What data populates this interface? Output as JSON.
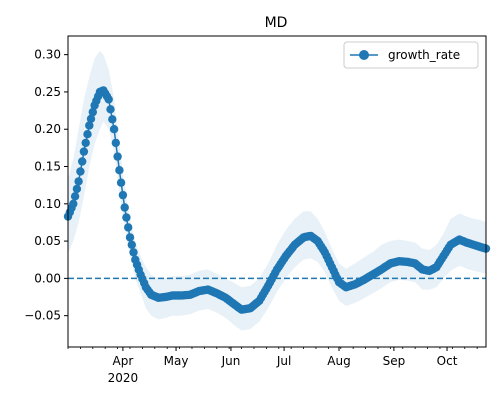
{
  "chart_data": {
    "type": "line",
    "title": "MD",
    "xlabel": "",
    "ylabel": "",
    "ylim": [
      -0.092,
      0.325
    ],
    "x_ticks": [
      {
        "date": "2020-04-01",
        "label": "Apr",
        "sublabel": "2020"
      },
      {
        "date": "2020-05-01",
        "label": "May"
      },
      {
        "date": "2020-06-01",
        "label": "Jun"
      },
      {
        "date": "2020-07-01",
        "label": "Jul"
      },
      {
        "date": "2020-08-01",
        "label": "Aug"
      },
      {
        "date": "2020-09-01",
        "label": "Sep"
      },
      {
        "date": "2020-10-01",
        "label": "Oct"
      }
    ],
    "y_ticks": [
      {
        "value": 0.3,
        "label": "0.30"
      },
      {
        "value": 0.25,
        "label": "0.25"
      },
      {
        "value": 0.2,
        "label": "0.20"
      },
      {
        "value": 0.15,
        "label": "0.15"
      },
      {
        "value": 0.1,
        "label": "0.10"
      },
      {
        "value": 0.05,
        "label": "0.05"
      },
      {
        "value": 0.0,
        "label": "0.00"
      },
      {
        "value": -0.05,
        "label": "−0.05"
      }
    ],
    "x_range": [
      "2020-03-01",
      "2020-10-23"
    ],
    "reference_line": {
      "y": 0.0,
      "style": "dashed",
      "color": "#1f77b4"
    },
    "legend": {
      "location": "upper right",
      "entries": [
        "growth_rate"
      ]
    },
    "series": [
      {
        "name": "growth_rate",
        "color": "#1f77b4",
        "band_color": "#1f77b4",
        "band_opacity": 0.1,
        "points": [
          {
            "x": "2020-03-01",
            "y": 0.083,
            "lo": 0.033,
            "hi": 0.133
          },
          {
            "x": "2020-03-04",
            "y": 0.1,
            "lo": 0.05,
            "hi": 0.16
          },
          {
            "x": "2020-03-07",
            "y": 0.13,
            "lo": 0.075,
            "hi": 0.2
          },
          {
            "x": "2020-03-10",
            "y": 0.17,
            "lo": 0.11,
            "hi": 0.24
          },
          {
            "x": "2020-03-13",
            "y": 0.205,
            "lo": 0.15,
            "hi": 0.27
          },
          {
            "x": "2020-03-16",
            "y": 0.232,
            "lo": 0.18,
            "hi": 0.295
          },
          {
            "x": "2020-03-19",
            "y": 0.25,
            "lo": 0.2,
            "hi": 0.305
          },
          {
            "x": "2020-03-21",
            "y": 0.252,
            "lo": 0.21,
            "hi": 0.3
          },
          {
            "x": "2020-03-24",
            "y": 0.24,
            "lo": 0.2,
            "hi": 0.28
          },
          {
            "x": "2020-03-27",
            "y": 0.2,
            "lo": 0.17,
            "hi": 0.24
          },
          {
            "x": "2020-03-30",
            "y": 0.145,
            "lo": 0.115,
            "hi": 0.18
          },
          {
            "x": "2020-04-02",
            "y": 0.095,
            "lo": 0.07,
            "hi": 0.125
          },
          {
            "x": "2020-04-05",
            "y": 0.055,
            "lo": 0.03,
            "hi": 0.08
          },
          {
            "x": "2020-04-08",
            "y": 0.025,
            "lo": 0.0,
            "hi": 0.05
          },
          {
            "x": "2020-04-11",
            "y": 0.005,
            "lo": -0.02,
            "hi": 0.03
          },
          {
            "x": "2020-04-14",
            "y": -0.012,
            "lo": -0.04,
            "hi": 0.015
          },
          {
            "x": "2020-04-17",
            "y": -0.022,
            "lo": -0.05,
            "hi": 0.005
          },
          {
            "x": "2020-04-21",
            "y": -0.026,
            "lo": -0.055,
            "hi": 0.0
          },
          {
            "x": "2020-04-25",
            "y": -0.025,
            "lo": -0.053,
            "hi": 0.0
          },
          {
            "x": "2020-04-29",
            "y": -0.023,
            "lo": -0.05,
            "hi": 0.003
          },
          {
            "x": "2020-05-04",
            "y": -0.023,
            "lo": -0.05,
            "hi": 0.003
          },
          {
            "x": "2020-05-09",
            "y": -0.022,
            "lo": -0.048,
            "hi": 0.005
          },
          {
            "x": "2020-05-14",
            "y": -0.017,
            "lo": -0.043,
            "hi": 0.01
          },
          {
            "x": "2020-05-19",
            "y": -0.015,
            "lo": -0.041,
            "hi": 0.012
          },
          {
            "x": "2020-05-24",
            "y": -0.02,
            "lo": -0.046,
            "hi": 0.006
          },
          {
            "x": "2020-05-29",
            "y": -0.026,
            "lo": -0.053,
            "hi": 0.0
          },
          {
            "x": "2020-06-03",
            "y": -0.035,
            "lo": -0.063,
            "hi": -0.006
          },
          {
            "x": "2020-06-07",
            "y": -0.042,
            "lo": -0.07,
            "hi": -0.012
          },
          {
            "x": "2020-06-12",
            "y": -0.04,
            "lo": -0.068,
            "hi": -0.01
          },
          {
            "x": "2020-06-17",
            "y": -0.03,
            "lo": -0.058,
            "hi": 0.0
          },
          {
            "x": "2020-06-22",
            "y": -0.01,
            "lo": -0.04,
            "hi": 0.02
          },
          {
            "x": "2020-06-27",
            "y": 0.012,
            "lo": -0.018,
            "hi": 0.045
          },
          {
            "x": "2020-07-02",
            "y": 0.03,
            "lo": 0.0,
            "hi": 0.065
          },
          {
            "x": "2020-07-07",
            "y": 0.045,
            "lo": 0.015,
            "hi": 0.08
          },
          {
            "x": "2020-07-12",
            "y": 0.055,
            "lo": 0.025,
            "hi": 0.09
          },
          {
            "x": "2020-07-16",
            "y": 0.057,
            "lo": 0.027,
            "hi": 0.09
          },
          {
            "x": "2020-07-20",
            "y": 0.05,
            "lo": 0.022,
            "hi": 0.08
          },
          {
            "x": "2020-07-24",
            "y": 0.035,
            "lo": 0.008,
            "hi": 0.062
          },
          {
            "x": "2020-07-28",
            "y": 0.015,
            "lo": -0.012,
            "hi": 0.04
          },
          {
            "x": "2020-08-01",
            "y": -0.005,
            "lo": -0.03,
            "hi": 0.02
          },
          {
            "x": "2020-08-05",
            "y": -0.012,
            "lo": -0.037,
            "hi": 0.013
          },
          {
            "x": "2020-08-10",
            "y": -0.008,
            "lo": -0.033,
            "hi": 0.02
          },
          {
            "x": "2020-08-15",
            "y": -0.002,
            "lo": -0.027,
            "hi": 0.028
          },
          {
            "x": "2020-08-20",
            "y": 0.005,
            "lo": -0.02,
            "hi": 0.035
          },
          {
            "x": "2020-08-25",
            "y": 0.012,
            "lo": -0.013,
            "hi": 0.045
          },
          {
            "x": "2020-08-30",
            "y": 0.02,
            "lo": -0.005,
            "hi": 0.05
          },
          {
            "x": "2020-09-04",
            "y": 0.023,
            "lo": -0.002,
            "hi": 0.052
          },
          {
            "x": "2020-09-09",
            "y": 0.022,
            "lo": -0.003,
            "hi": 0.05
          },
          {
            "x": "2020-09-13",
            "y": 0.02,
            "lo": -0.005,
            "hi": 0.048
          },
          {
            "x": "2020-09-17",
            "y": 0.012,
            "lo": -0.015,
            "hi": 0.04
          },
          {
            "x": "2020-09-21",
            "y": 0.01,
            "lo": -0.015,
            "hi": 0.038
          },
          {
            "x": "2020-09-25",
            "y": 0.015,
            "lo": -0.012,
            "hi": 0.045
          },
          {
            "x": "2020-09-29",
            "y": 0.03,
            "lo": 0.0,
            "hi": 0.06
          },
          {
            "x": "2020-10-03",
            "y": 0.045,
            "lo": 0.01,
            "hi": 0.08
          },
          {
            "x": "2020-10-08",
            "y": 0.052,
            "lo": 0.017,
            "hi": 0.087
          },
          {
            "x": "2020-10-12",
            "y": 0.048,
            "lo": 0.013,
            "hi": 0.083
          },
          {
            "x": "2020-10-16",
            "y": 0.045,
            "lo": 0.01,
            "hi": 0.08
          },
          {
            "x": "2020-10-20",
            "y": 0.042,
            "lo": 0.008,
            "hi": 0.078
          },
          {
            "x": "2020-10-23",
            "y": 0.04,
            "lo": 0.006,
            "hi": 0.076
          }
        ]
      }
    ]
  }
}
